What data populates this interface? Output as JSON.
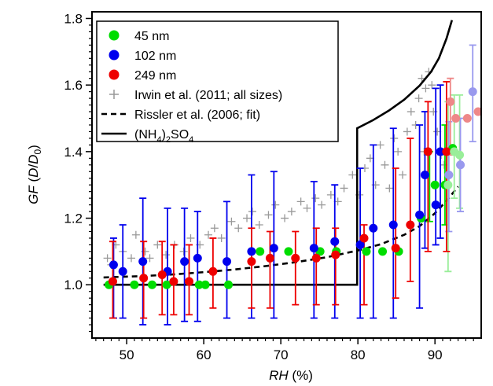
{
  "chart_data": {
    "type": "scatter",
    "xlabel": "RH (%)",
    "ylabel": "GF (D/D0)",
    "xlim": [
      45.5,
      96
    ],
    "ylim": [
      0.84,
      1.82
    ],
    "x_ticks": [
      50,
      60,
      70,
      80,
      90
    ],
    "y_ticks": [
      1.0,
      1.2,
      1.4,
      1.6,
      1.8
    ],
    "x_tick_labels": [
      "50",
      "60",
      "70",
      "80",
      "90"
    ],
    "y_tick_labels": [
      "1.0",
      "1.2",
      "1.4",
      "1.6",
      "1.8"
    ],
    "grid": false,
    "legend_position": "top-left",
    "series": [
      {
        "name": "45 nm",
        "color": "#00dd00",
        "marker": "circle",
        "points": [
          {
            "x": 47.7,
            "y": 1.0
          },
          {
            "x": 51.0,
            "y": 1.0
          },
          {
            "x": 53.3,
            "y": 1.0
          },
          {
            "x": 55.2,
            "y": 1.0
          },
          {
            "x": 59.4,
            "y": 1.0
          },
          {
            "x": 60.2,
            "y": 1.0
          },
          {
            "x": 63.2,
            "y": 1.0
          },
          {
            "x": 67.3,
            "y": 1.1
          },
          {
            "x": 71.0,
            "y": 1.1
          },
          {
            "x": 75.1,
            "y": 1.1
          },
          {
            "x": 77.2,
            "y": 1.1
          },
          {
            "x": 81.1,
            "y": 1.1
          },
          {
            "x": 83.2,
            "y": 1.1
          },
          {
            "x": 85.3,
            "y": 1.1
          },
          {
            "x": 88.2,
            "y": 1.2
          },
          {
            "x": 90.0,
            "y": 1.3
          },
          {
            "x": 91.3,
            "y": 1.3
          },
          {
            "x": 92.3,
            "y": 1.41
          }
        ]
      },
      {
        "name": "102 nm",
        "color": "#0000ee",
        "marker": "circle",
        "points": [
          {
            "x": 48.3,
            "y": 1.06
          },
          {
            "x": 49.5,
            "y": 1.04
          },
          {
            "x": 52.1,
            "y": 1.07
          },
          {
            "x": 55.3,
            "y": 1.04
          },
          {
            "x": 57.5,
            "y": 1.07
          },
          {
            "x": 59.2,
            "y": 1.08
          },
          {
            "x": 63.0,
            "y": 1.07
          },
          {
            "x": 66.2,
            "y": 1.1
          },
          {
            "x": 69.1,
            "y": 1.11
          },
          {
            "x": 74.3,
            "y": 1.11
          },
          {
            "x": 77.0,
            "y": 1.13
          },
          {
            "x": 80.3,
            "y": 1.12
          },
          {
            "x": 82.0,
            "y": 1.17
          },
          {
            "x": 84.6,
            "y": 1.18
          },
          {
            "x": 88.0,
            "y": 1.21
          },
          {
            "x": 88.7,
            "y": 1.33
          },
          {
            "x": 90.1,
            "y": 1.24
          },
          {
            "x": 90.7,
            "y": 1.4
          }
        ]
      },
      {
        "name": "249 nm",
        "color": "#ee0000",
        "marker": "circle",
        "points": [
          {
            "x": 48.2,
            "y": 1.01
          },
          {
            "x": 52.2,
            "y": 1.02
          },
          {
            "x": 54.6,
            "y": 1.03
          },
          {
            "x": 56.1,
            "y": 1.01
          },
          {
            "x": 58.1,
            "y": 1.01
          },
          {
            "x": 61.2,
            "y": 1.04
          },
          {
            "x": 66.2,
            "y": 1.07
          },
          {
            "x": 68.6,
            "y": 1.08
          },
          {
            "x": 71.9,
            "y": 1.08
          },
          {
            "x": 74.6,
            "y": 1.08
          },
          {
            "x": 77.1,
            "y": 1.09
          },
          {
            "x": 80.8,
            "y": 1.14
          },
          {
            "x": 84.9,
            "y": 1.11
          },
          {
            "x": 86.8,
            "y": 1.18
          },
          {
            "x": 89.1,
            "y": 1.4
          },
          {
            "x": 91.5,
            "y": 1.4
          }
        ]
      },
      {
        "name": "45 nm (faded)",
        "color": "#99ee99",
        "marker": "circle",
        "points": [
          {
            "x": 91.7,
            "y": 1.3
          },
          {
            "x": 92.5,
            "y": 1.4
          },
          {
            "x": 93.2,
            "y": 1.39
          }
        ]
      },
      {
        "name": "102 nm (faded)",
        "color": "#9999ee",
        "marker": "circle",
        "points": [
          {
            "x": 91.8,
            "y": 1.33
          },
          {
            "x": 93.3,
            "y": 1.36
          },
          {
            "x": 94.9,
            "y": 1.58
          }
        ]
      },
      {
        "name": "249 nm (faded)",
        "color": "#ee8888",
        "marker": "circle",
        "points": [
          {
            "x": 92.0,
            "y": 1.55
          },
          {
            "x": 92.7,
            "y": 1.5
          },
          {
            "x": 94.2,
            "y": 1.5
          },
          {
            "x": 95.6,
            "y": 1.52
          }
        ]
      },
      {
        "name": "Irwin et al. (2011; all sizes)",
        "color": "#999999",
        "marker": "plus",
        "points": [
          {
            "x": 47.5,
            "y": 1.08
          },
          {
            "x": 48.0,
            "y": 1.06
          },
          {
            "x": 48.6,
            "y": 1.12
          },
          {
            "x": 49.5,
            "y": 1.1
          },
          {
            "x": 50.6,
            "y": 1.08
          },
          {
            "x": 51.2,
            "y": 1.15
          },
          {
            "x": 52.4,
            "y": 1.1
          },
          {
            "x": 53.0,
            "y": 1.08
          },
          {
            "x": 54.0,
            "y": 1.12
          },
          {
            "x": 55.1,
            "y": 1.09
          },
          {
            "x": 56.2,
            "y": 1.12
          },
          {
            "x": 57.4,
            "y": 1.1
          },
          {
            "x": 58.3,
            "y": 1.14
          },
          {
            "x": 59.5,
            "y": 1.12
          },
          {
            "x": 60.6,
            "y": 1.15
          },
          {
            "x": 61.4,
            "y": 1.17
          },
          {
            "x": 62.3,
            "y": 1.14
          },
          {
            "x": 63.6,
            "y": 1.19
          },
          {
            "x": 64.5,
            "y": 1.17
          },
          {
            "x": 65.6,
            "y": 1.2
          },
          {
            "x": 66.3,
            "y": 1.22
          },
          {
            "x": 67.2,
            "y": 1.18
          },
          {
            "x": 68.4,
            "y": 1.21
          },
          {
            "x": 69.3,
            "y": 1.24
          },
          {
            "x": 70.5,
            "y": 1.2
          },
          {
            "x": 71.4,
            "y": 1.22
          },
          {
            "x": 72.6,
            "y": 1.25
          },
          {
            "x": 73.4,
            "y": 1.23
          },
          {
            "x": 74.5,
            "y": 1.26
          },
          {
            "x": 75.3,
            "y": 1.24
          },
          {
            "x": 76.5,
            "y": 1.27
          },
          {
            "x": 77.4,
            "y": 1.25
          },
          {
            "x": 78.2,
            "y": 1.29
          },
          {
            "x": 79.3,
            "y": 1.33
          },
          {
            "x": 80.2,
            "y": 1.27
          },
          {
            "x": 80.9,
            "y": 1.35
          },
          {
            "x": 81.6,
            "y": 1.38
          },
          {
            "x": 82.3,
            "y": 1.3
          },
          {
            "x": 82.9,
            "y": 1.42
          },
          {
            "x": 83.5,
            "y": 1.36
          },
          {
            "x": 84.1,
            "y": 1.29
          },
          {
            "x": 84.7,
            "y": 1.44
          },
          {
            "x": 85.2,
            "y": 1.4
          },
          {
            "x": 85.8,
            "y": 1.33
          },
          {
            "x": 86.4,
            "y": 1.46
          },
          {
            "x": 86.9,
            "y": 1.52
          },
          {
            "x": 87.5,
            "y": 1.48
          },
          {
            "x": 87.9,
            "y": 1.56
          },
          {
            "x": 88.3,
            "y": 1.62
          },
          {
            "x": 88.8,
            "y": 1.59
          },
          {
            "x": 89.2,
            "y": 1.64
          },
          {
            "x": 89.6,
            "y": 1.6
          },
          {
            "x": 88.6,
            "y": 1.4
          },
          {
            "x": 89.8,
            "y": 1.52
          },
          {
            "x": 90.3,
            "y": 1.46
          },
          {
            "x": 90.8,
            "y": 1.39
          },
          {
            "x": 91.2,
            "y": 1.36
          }
        ]
      }
    ],
    "error_bars": [
      {
        "series": "45 nm",
        "color": "#00dd00",
        "bars": [
          {
            "x": 89.3,
            "lo": 1.19,
            "hi": 1.4
          },
          {
            "x": 91.3,
            "lo": 1.18,
            "hi": 1.48
          }
        ]
      },
      {
        "series": "45 nm (faded)",
        "color": "#99ee99",
        "bars": [
          {
            "x": 91.7,
            "lo": 1.04,
            "hi": 1.55
          },
          {
            "x": 92.5,
            "lo": 1.26,
            "hi": 1.57
          },
          {
            "x": 93.2,
            "lo": 1.23,
            "hi": 1.57
          }
        ]
      },
      {
        "series": "102 nm",
        "color": "#0000ee",
        "bars": [
          {
            "x": 48.3,
            "lo": 0.9,
            "hi": 1.14
          },
          {
            "x": 49.5,
            "lo": 0.9,
            "hi": 1.18
          },
          {
            "x": 52.1,
            "lo": 0.88,
            "hi": 1.26
          },
          {
            "x": 55.3,
            "lo": 0.88,
            "hi": 1.23
          },
          {
            "x": 57.5,
            "lo": 0.89,
            "hi": 1.23
          },
          {
            "x": 59.2,
            "lo": 0.89,
            "hi": 1.22
          },
          {
            "x": 63.0,
            "lo": 0.9,
            "hi": 1.25
          },
          {
            "x": 66.2,
            "lo": 0.9,
            "hi": 1.33
          },
          {
            "x": 69.1,
            "lo": 0.9,
            "hi": 1.34
          },
          {
            "x": 74.3,
            "lo": 0.9,
            "hi": 1.31
          },
          {
            "x": 77.0,
            "lo": 0.9,
            "hi": 1.3
          },
          {
            "x": 80.3,
            "lo": 0.9,
            "hi": 1.35
          },
          {
            "x": 82.0,
            "lo": 0.9,
            "hi": 1.42
          },
          {
            "x": 84.6,
            "lo": 0.9,
            "hi": 1.47
          },
          {
            "x": 88.0,
            "lo": 0.93,
            "hi": 1.48
          },
          {
            "x": 88.7,
            "lo": 1.11,
            "hi": 1.52
          },
          {
            "x": 90.1,
            "lo": 1.12,
            "hi": 1.59
          },
          {
            "x": 90.7,
            "lo": 1.14,
            "hi": 1.6
          }
        ]
      },
      {
        "series": "102 nm (faded)",
        "color": "#9999ee",
        "bars": [
          {
            "x": 91.8,
            "lo": 1.16,
            "hi": 1.49
          },
          {
            "x": 93.3,
            "lo": 1.22,
            "hi": 1.5
          },
          {
            "x": 94.9,
            "lo": 1.43,
            "hi": 1.72
          }
        ]
      },
      {
        "series": "249 nm",
        "color": "#ee0000",
        "bars": [
          {
            "x": 48.2,
            "lo": 0.9,
            "hi": 1.13
          },
          {
            "x": 52.2,
            "lo": 0.9,
            "hi": 1.13
          },
          {
            "x": 54.6,
            "lo": 0.91,
            "hi": 1.13
          },
          {
            "x": 56.1,
            "lo": 0.91,
            "hi": 1.12
          },
          {
            "x": 58.1,
            "lo": 0.91,
            "hi": 1.12
          },
          {
            "x": 61.2,
            "lo": 0.93,
            "hi": 1.14
          },
          {
            "x": 66.2,
            "lo": 0.93,
            "hi": 1.17
          },
          {
            "x": 68.6,
            "lo": 0.93,
            "hi": 1.16
          },
          {
            "x": 71.9,
            "lo": 0.94,
            "hi": 1.16
          },
          {
            "x": 74.6,
            "lo": 0.94,
            "hi": 1.17
          },
          {
            "x": 77.1,
            "lo": 0.94,
            "hi": 1.17
          },
          {
            "x": 80.8,
            "lo": 0.94,
            "hi": 1.18
          },
          {
            "x": 84.9,
            "lo": 0.96,
            "hi": 1.35
          },
          {
            "x": 86.8,
            "lo": 1.01,
            "hi": 1.44
          },
          {
            "x": 89.1,
            "lo": 1.1,
            "hi": 1.55
          },
          {
            "x": 91.5,
            "lo": 1.1,
            "hi": 1.61
          }
        ]
      },
      {
        "series": "249 nm (faded)",
        "color": "#ee8888",
        "bars": [
          {
            "x": 92.0,
            "lo": 1.39,
            "hi": 1.62
          }
        ]
      }
    ],
    "lines": [
      {
        "name": "Rissler et al. (2006; fit)",
        "color": "#000000",
        "style": "dashed",
        "points": [
          [
            47,
            1.022
          ],
          [
            52,
            1.026
          ],
          [
            56,
            1.031
          ],
          [
            60,
            1.038
          ],
          [
            64,
            1.046
          ],
          [
            68,
            1.056
          ],
          [
            72,
            1.068
          ],
          [
            76,
            1.083
          ],
          [
            80,
            1.103
          ],
          [
            83,
            1.122
          ],
          [
            86,
            1.15
          ],
          [
            88,
            1.176
          ],
          [
            90,
            1.215
          ],
          [
            91.5,
            1.252
          ],
          [
            93,
            1.295
          ]
        ]
      },
      {
        "name": "(NH4)2SO4",
        "color": "#000000",
        "style": "solid",
        "points": [
          [
            47,
            1.0
          ],
          [
            79.9,
            1.0
          ],
          [
            79.9,
            1.47
          ],
          [
            82,
            1.495
          ],
          [
            84,
            1.523
          ],
          [
            86,
            1.556
          ],
          [
            88,
            1.598
          ],
          [
            89.5,
            1.64
          ],
          [
            90.5,
            1.68
          ],
          [
            91.5,
            1.74
          ],
          [
            92.2,
            1.795
          ]
        ]
      }
    ],
    "legend": [
      {
        "label": "45 nm",
        "kind": "dot",
        "color": "#00dd00"
      },
      {
        "label": "102 nm",
        "kind": "dot",
        "color": "#0000ee"
      },
      {
        "label": "249 nm",
        "kind": "dot",
        "color": "#ee0000"
      },
      {
        "label": "Irwin et al. (2011; all sizes)",
        "kind": "plus",
        "color": "#999999"
      },
      {
        "label": "Rissler et al. (2006; fit)",
        "kind": "dashed",
        "color": "#000000"
      },
      {
        "label": "(NH4)2SO4",
        "kind": "solid",
        "color": "#000000"
      }
    ]
  }
}
